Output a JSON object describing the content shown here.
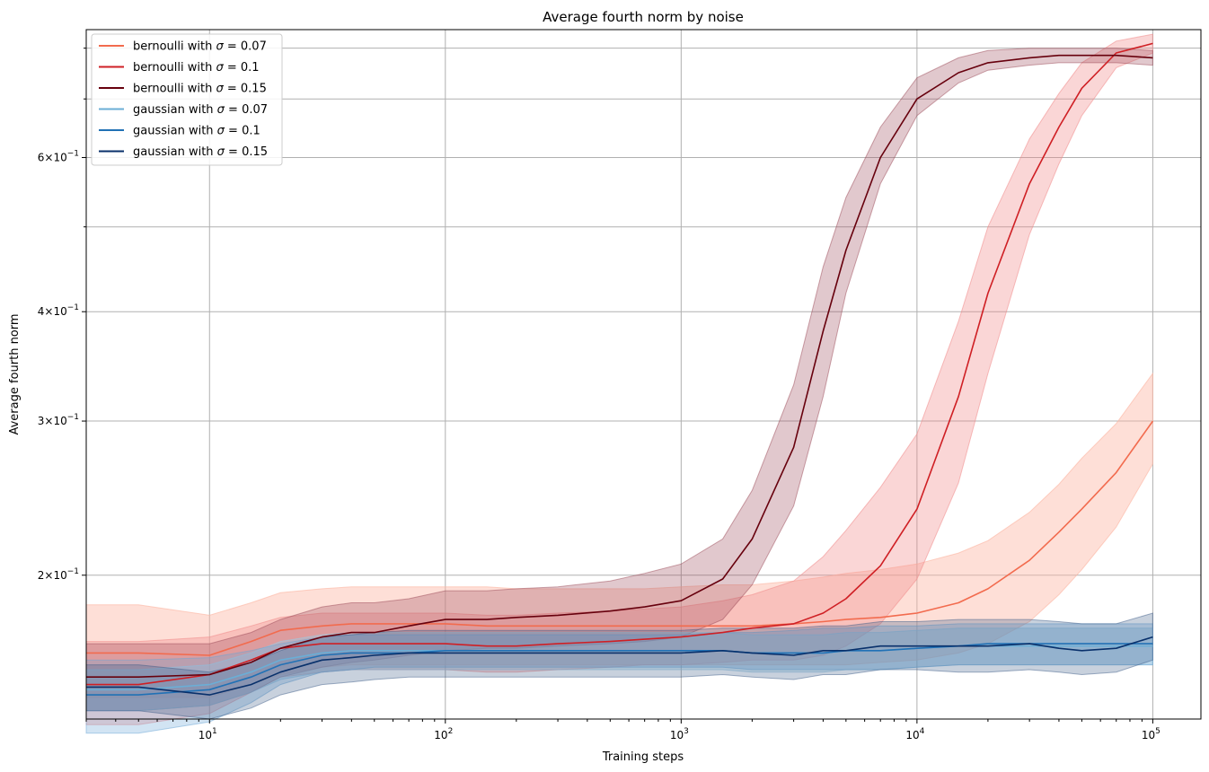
{
  "chart_data": {
    "type": "line",
    "title": "Average fourth norm by noise",
    "xlabel": "Training steps",
    "ylabel": "Average fourth norm",
    "xscale": "log",
    "yscale": "log",
    "xlim": [
      3,
      160000
    ],
    "ylim": [
      0.137,
      0.84
    ],
    "x_ticks": [
      {
        "value": 10,
        "base": "10",
        "exp": "1"
      },
      {
        "value": 100,
        "base": "10",
        "exp": "2"
      },
      {
        "value": 1000,
        "base": "10",
        "exp": "3"
      },
      {
        "value": 10000,
        "base": "10",
        "exp": "4"
      },
      {
        "value": 100000,
        "base": "10",
        "exp": "5"
      }
    ],
    "y_ticks": [
      {
        "value": 0.2,
        "mantissa": "2",
        "times": "×",
        "base": "10",
        "exp": "−1"
      },
      {
        "value": 0.3,
        "mantissa": "3",
        "times": "×",
        "base": "10",
        "exp": "−1"
      },
      {
        "value": 0.4,
        "mantissa": "4",
        "times": "×",
        "base": "10",
        "exp": "−1"
      },
      {
        "value": 0.6,
        "mantissa": "6",
        "times": "×",
        "base": "10",
        "exp": "−1"
      }
    ],
    "y_minor_ticks": [
      0.5,
      0.7,
      0.8
    ],
    "grid": true,
    "legend_position": "top-left",
    "x": [
      3,
      5,
      10,
      15,
      20,
      30,
      40,
      50,
      70,
      100,
      150,
      200,
      300,
      500,
      700,
      1000,
      1500,
      2000,
      3000,
      4000,
      5000,
      7000,
      10000,
      15000,
      20000,
      30000,
      40000,
      50000,
      70000,
      100000
    ],
    "series": [
      {
        "name": "bernoulli with σ = 0.07",
        "legend_prefix": "bernoulli with ",
        "legend_sigma": "σ",
        "legend_suffix": " = 0.07",
        "color": "#f26b4e",
        "band_color": "#fcb9a6",
        "band_opacity": 0.45,
        "values": [
          0.163,
          0.163,
          0.162,
          0.168,
          0.173,
          0.175,
          0.176,
          0.176,
          0.176,
          0.176,
          0.175,
          0.175,
          0.175,
          0.175,
          0.175,
          0.175,
          0.175,
          0.175,
          0.176,
          0.177,
          0.178,
          0.179,
          0.181,
          0.186,
          0.193,
          0.208,
          0.224,
          0.238,
          0.262,
          0.3
        ],
        "lower": [
          0.145,
          0.145,
          0.145,
          0.15,
          0.154,
          0.157,
          0.158,
          0.158,
          0.158,
          0.158,
          0.158,
          0.158,
          0.158,
          0.158,
          0.158,
          0.158,
          0.158,
          0.158,
          0.158,
          0.158,
          0.158,
          0.159,
          0.16,
          0.163,
          0.167,
          0.177,
          0.19,
          0.203,
          0.227,
          0.268
        ],
        "upper": [
          0.185,
          0.185,
          0.18,
          0.186,
          0.191,
          0.193,
          0.194,
          0.194,
          0.194,
          0.194,
          0.194,
          0.193,
          0.193,
          0.193,
          0.193,
          0.194,
          0.195,
          0.195,
          0.197,
          0.199,
          0.201,
          0.203,
          0.206,
          0.212,
          0.219,
          0.236,
          0.254,
          0.272,
          0.298,
          0.34
        ]
      },
      {
        "name": "bernoulli with σ = 0.1",
        "legend_prefix": "bernoulli with ",
        "legend_sigma": "σ",
        "legend_suffix": " = 0.1",
        "color": "#cf1f24",
        "band_color": "#f08a8a",
        "band_opacity": 0.35,
        "values": [
          0.15,
          0.15,
          0.154,
          0.16,
          0.165,
          0.167,
          0.167,
          0.167,
          0.167,
          0.167,
          0.166,
          0.166,
          0.167,
          0.168,
          0.169,
          0.17,
          0.172,
          0.174,
          0.176,
          0.181,
          0.188,
          0.205,
          0.238,
          0.32,
          0.42,
          0.56,
          0.65,
          0.72,
          0.79,
          0.81
        ],
        "lower": [
          0.135,
          0.135,
          0.139,
          0.147,
          0.153,
          0.155,
          0.156,
          0.156,
          0.156,
          0.156,
          0.155,
          0.155,
          0.156,
          0.157,
          0.158,
          0.158,
          0.159,
          0.16,
          0.16,
          0.162,
          0.166,
          0.176,
          0.198,
          0.255,
          0.34,
          0.49,
          0.59,
          0.67,
          0.76,
          0.79
        ],
        "upper": [
          0.168,
          0.168,
          0.17,
          0.175,
          0.179,
          0.181,
          0.181,
          0.181,
          0.181,
          0.181,
          0.18,
          0.18,
          0.181,
          0.182,
          0.183,
          0.184,
          0.187,
          0.19,
          0.197,
          0.21,
          0.225,
          0.252,
          0.29,
          0.39,
          0.5,
          0.63,
          0.71,
          0.77,
          0.815,
          0.83
        ]
      },
      {
        "name": "bernoulli with σ = 0.15",
        "legend_prefix": "bernoulli with ",
        "legend_sigma": "σ",
        "legend_suffix": " = 0.15",
        "color": "#67000d",
        "band_color": "#9c4a58",
        "band_opacity": 0.3,
        "values": [
          0.153,
          0.153,
          0.154,
          0.159,
          0.165,
          0.17,
          0.172,
          0.172,
          0.175,
          0.178,
          0.178,
          0.179,
          0.18,
          0.182,
          0.184,
          0.187,
          0.198,
          0.22,
          0.28,
          0.38,
          0.47,
          0.6,
          0.7,
          0.75,
          0.77,
          0.78,
          0.785,
          0.785,
          0.785,
          0.78
        ],
        "lower": [
          0.14,
          0.14,
          0.142,
          0.147,
          0.153,
          0.157,
          0.159,
          0.16,
          0.162,
          0.164,
          0.165,
          0.165,
          0.166,
          0.167,
          0.168,
          0.17,
          0.178,
          0.195,
          0.24,
          0.32,
          0.42,
          0.56,
          0.67,
          0.73,
          0.755,
          0.765,
          0.77,
          0.77,
          0.77,
          0.765
        ],
        "upper": [
          0.167,
          0.167,
          0.167,
          0.172,
          0.178,
          0.184,
          0.186,
          0.186,
          0.188,
          0.192,
          0.192,
          0.193,
          0.194,
          0.197,
          0.201,
          0.206,
          0.22,
          0.25,
          0.33,
          0.45,
          0.54,
          0.65,
          0.74,
          0.78,
          0.795,
          0.8,
          0.8,
          0.8,
          0.8,
          0.795
        ]
      },
      {
        "name": "gaussian with σ = 0.07",
        "legend_prefix": "gaussian with ",
        "legend_sigma": "σ",
        "legend_suffix": " = 0.07",
        "color": "#6baed6",
        "band_color": "#9ecae1",
        "band_opacity": 0.4,
        "values": [
          0.148,
          0.148,
          0.15,
          0.155,
          0.16,
          0.163,
          0.164,
          0.164,
          0.164,
          0.164,
          0.164,
          0.164,
          0.164,
          0.164,
          0.164,
          0.164,
          0.164,
          0.163,
          0.163,
          0.163,
          0.164,
          0.164,
          0.165,
          0.166,
          0.166,
          0.166,
          0.166,
          0.166,
          0.166,
          0.166
        ],
        "lower": [
          0.14,
          0.14,
          0.142,
          0.147,
          0.152,
          0.155,
          0.156,
          0.156,
          0.156,
          0.156,
          0.156,
          0.156,
          0.156,
          0.156,
          0.156,
          0.156,
          0.156,
          0.155,
          0.155,
          0.155,
          0.156,
          0.156,
          0.157,
          0.158,
          0.158,
          0.158,
          0.158,
          0.158,
          0.158,
          0.158
        ],
        "upper": [
          0.156,
          0.156,
          0.158,
          0.163,
          0.168,
          0.171,
          0.172,
          0.172,
          0.172,
          0.172,
          0.172,
          0.172,
          0.172,
          0.172,
          0.172,
          0.172,
          0.172,
          0.171,
          0.171,
          0.171,
          0.172,
          0.172,
          0.173,
          0.174,
          0.174,
          0.174,
          0.174,
          0.174,
          0.174,
          0.174
        ]
      },
      {
        "name": "gaussian with σ = 0.1",
        "legend_prefix": "gaussian with ",
        "legend_sigma": "σ",
        "legend_suffix": " = 0.1",
        "color": "#2171b5",
        "band_color": "#6aa6d6",
        "band_opacity": 0.3,
        "values": [
          0.146,
          0.146,
          0.148,
          0.153,
          0.158,
          0.162,
          0.163,
          0.163,
          0.163,
          0.164,
          0.164,
          0.164,
          0.164,
          0.164,
          0.164,
          0.164,
          0.164,
          0.163,
          0.163,
          0.163,
          0.164,
          0.164,
          0.165,
          0.166,
          0.167,
          0.167,
          0.167,
          0.167,
          0.167,
          0.167
        ],
        "lower": [
          0.132,
          0.132,
          0.136,
          0.143,
          0.15,
          0.155,
          0.156,
          0.157,
          0.157,
          0.157,
          0.157,
          0.157,
          0.157,
          0.157,
          0.157,
          0.157,
          0.157,
          0.156,
          0.156,
          0.156,
          0.156,
          0.156,
          0.157,
          0.158,
          0.158,
          0.158,
          0.158,
          0.158,
          0.158,
          0.158
        ],
        "upper": [
          0.16,
          0.16,
          0.161,
          0.164,
          0.167,
          0.17,
          0.171,
          0.171,
          0.171,
          0.171,
          0.171,
          0.171,
          0.171,
          0.171,
          0.171,
          0.171,
          0.172,
          0.172,
          0.173,
          0.174,
          0.174,
          0.175,
          0.175,
          0.176,
          0.176,
          0.176,
          0.176,
          0.176,
          0.176,
          0.176
        ]
      },
      {
        "name": "gaussian with σ = 0.15",
        "legend_prefix": "gaussian with ",
        "legend_sigma": "σ",
        "legend_suffix": " = 0.15",
        "color": "#08306b",
        "band_color": "#3b5a85",
        "band_opacity": 0.28,
        "values": [
          0.149,
          0.149,
          0.146,
          0.15,
          0.155,
          0.16,
          0.161,
          0.162,
          0.163,
          0.163,
          0.163,
          0.163,
          0.163,
          0.163,
          0.163,
          0.163,
          0.164,
          0.163,
          0.162,
          0.164,
          0.164,
          0.166,
          0.166,
          0.166,
          0.166,
          0.167,
          0.165,
          0.164,
          0.165,
          0.17
        ],
        "lower": [
          0.14,
          0.14,
          0.137,
          0.141,
          0.146,
          0.15,
          0.151,
          0.152,
          0.153,
          0.153,
          0.153,
          0.153,
          0.153,
          0.153,
          0.153,
          0.153,
          0.154,
          0.153,
          0.152,
          0.154,
          0.154,
          0.156,
          0.156,
          0.155,
          0.155,
          0.156,
          0.155,
          0.154,
          0.155,
          0.16
        ],
        "upper": [
          0.158,
          0.158,
          0.155,
          0.159,
          0.164,
          0.17,
          0.171,
          0.172,
          0.173,
          0.173,
          0.173,
          0.173,
          0.173,
          0.173,
          0.173,
          0.173,
          0.174,
          0.174,
          0.174,
          0.175,
          0.175,
          0.177,
          0.177,
          0.178,
          0.178,
          0.178,
          0.177,
          0.176,
          0.176,
          0.181
        ]
      }
    ]
  }
}
